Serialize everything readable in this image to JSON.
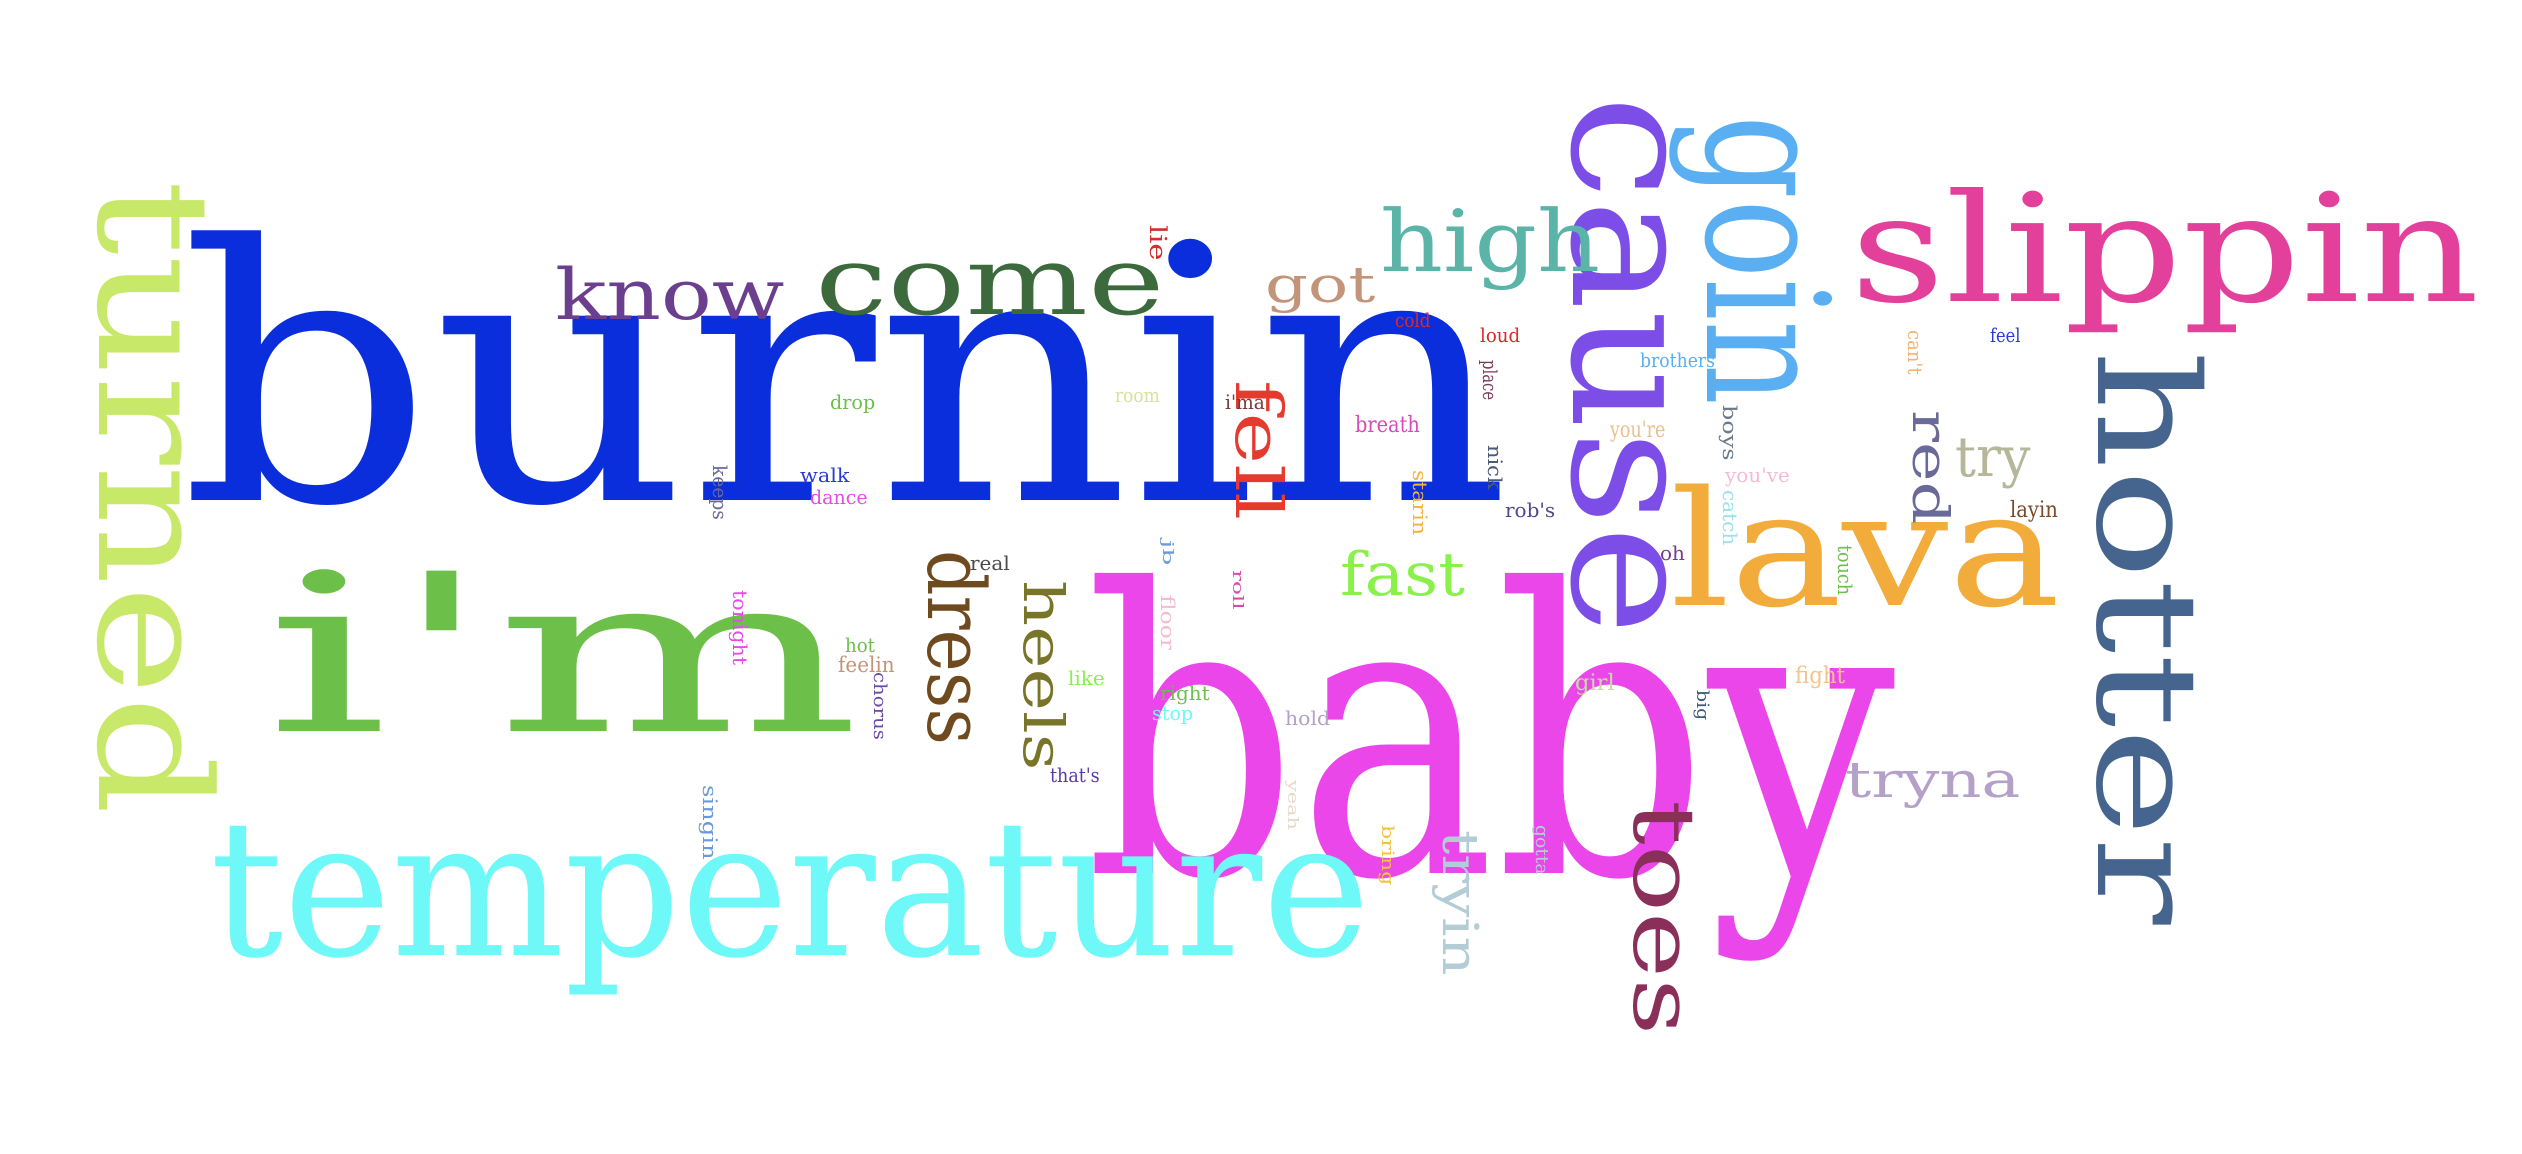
{
  "words": [
    {
      "text": "burnin",
      "color": "#0a2edb",
      "rotation": "horizontal"
    },
    {
      "text": "i'm",
      "color": "#6cc04a",
      "rotation": "horizontal"
    },
    {
      "text": "baby",
      "color": "#ea46ea",
      "rotation": "horizontal"
    },
    {
      "text": "temperature",
      "color": "#6ff8f8",
      "rotation": "horizontal"
    },
    {
      "text": "turned",
      "color": "#c8e86a",
      "rotation": "rotated"
    },
    {
      "text": "cause",
      "color": "#7d4de8",
      "rotation": "rotated"
    },
    {
      "text": "goin",
      "color": "#5aaef2",
      "rotation": "rotated"
    },
    {
      "text": "slippin",
      "color": "#e2409a",
      "rotation": "horizontal"
    },
    {
      "text": "hotter",
      "color": "#46658e",
      "rotation": "rotated"
    },
    {
      "text": "lava",
      "color": "#f2ac3c",
      "rotation": "horizontal"
    },
    {
      "text": "come",
      "color": "#3d6a3d",
      "rotation": "horizontal"
    },
    {
      "text": "know",
      "color": "#6b3f8e",
      "rotation": "horizontal"
    },
    {
      "text": "high",
      "color": "#5ab4a8",
      "rotation": "horizontal"
    },
    {
      "text": "got",
      "color": "#c29479",
      "rotation": "horizontal"
    },
    {
      "text": "fell",
      "color": "#e53a2e",
      "rotation": "rotated"
    },
    {
      "text": "fast",
      "color": "#8af04a",
      "rotation": "horizontal"
    },
    {
      "text": "dress",
      "color": "#6e4a1e",
      "rotation": "rotated"
    },
    {
      "text": "heels",
      "color": "#787428",
      "rotation": "rotated"
    },
    {
      "text": "toes",
      "color": "#8a2e5a",
      "rotation": "rotated"
    },
    {
      "text": "tryna",
      "color": "#b4a0c8",
      "rotation": "horizontal"
    },
    {
      "text": "tryin",
      "color": "#b4ccd6",
      "rotation": "rotated"
    },
    {
      "text": "try",
      "color": "#b6b69a",
      "rotation": "horizontal"
    },
    {
      "text": "red",
      "color": "#6a6a9a",
      "rotation": "rotated"
    },
    {
      "text": "lie",
      "color": "#d0302a",
      "rotation": "rotated"
    },
    {
      "text": "cold",
      "color": "#d82a2a",
      "rotation": "horizontal"
    },
    {
      "text": "loud",
      "color": "#d82a2a",
      "rotation": "horizontal"
    },
    {
      "text": "place",
      "color": "#7a3a5a",
      "rotation": "rotated"
    },
    {
      "text": "brothers",
      "color": "#5aaef2",
      "rotation": "horizontal"
    },
    {
      "text": "feel",
      "color": "#2a3ad8",
      "rotation": "horizontal"
    },
    {
      "text": "can't",
      "color": "#f2b470",
      "rotation": "rotated"
    },
    {
      "text": "drop",
      "color": "#6cc04a",
      "rotation": "horizontal"
    },
    {
      "text": "room",
      "color": "#d4e49a",
      "rotation": "horizontal"
    },
    {
      "text": "i'ma",
      "color": "#7a3a3a",
      "rotation": "horizontal"
    },
    {
      "text": "breath",
      "color": "#d84ab4",
      "rotation": "horizontal"
    },
    {
      "text": "you're",
      "color": "#e8c090",
      "rotation": "horizontal"
    },
    {
      "text": "boys",
      "color": "#6a7a8a",
      "rotation": "rotated"
    },
    {
      "text": "you've",
      "color": "#f4bcd4",
      "rotation": "horizontal"
    },
    {
      "text": "nick",
      "color": "#4a5a7a",
      "rotation": "rotated"
    },
    {
      "text": "starin",
      "color": "#f2b43c",
      "rotation": "rotated"
    },
    {
      "text": "catch",
      "color": "#9ae0f0",
      "rotation": "rotated"
    },
    {
      "text": "rob's",
      "color": "#4a4a8a",
      "rotation": "horizontal"
    },
    {
      "text": "layin",
      "color": "#7a4a2a",
      "rotation": "horizontal"
    },
    {
      "text": "keeps",
      "color": "#6a6a9a",
      "rotation": "rotated"
    },
    {
      "text": "walk",
      "color": "#2a3ad8",
      "rotation": "horizontal"
    },
    {
      "text": "dance",
      "color": "#e84ae8",
      "rotation": "horizontal"
    },
    {
      "text": "oh",
      "color": "#7a3a8a",
      "rotation": "horizontal"
    },
    {
      "text": "touch",
      "color": "#6cc04a",
      "rotation": "rotated"
    },
    {
      "text": "real",
      "color": "#4a4a4a",
      "rotation": "horizontal"
    },
    {
      "text": "jb",
      "color": "#6a9ad8",
      "rotation": "rotated"
    },
    {
      "text": "roll",
      "color": "#d84ab4",
      "rotation": "rotated"
    },
    {
      "text": "floor",
      "color": "#f4bcd4",
      "rotation": "rotated"
    },
    {
      "text": "tonight",
      "color": "#e84ae8",
      "rotation": "rotated"
    },
    {
      "text": "hot",
      "color": "#6cc04a",
      "rotation": "horizontal"
    },
    {
      "text": "feelin",
      "color": "#c29479",
      "rotation": "horizontal"
    },
    {
      "text": "chorus",
      "color": "#6a4aa8",
      "rotation": "rotated"
    },
    {
      "text": "like",
      "color": "#8af04a",
      "rotation": "horizontal"
    },
    {
      "text": "right",
      "color": "#6cc04a",
      "rotation": "horizontal"
    },
    {
      "text": "stop",
      "color": "#6ff8f8",
      "rotation": "horizontal"
    },
    {
      "text": "hold",
      "color": "#b4a0c8",
      "rotation": "horizontal"
    },
    {
      "text": "fight",
      "color": "#f4c48a",
      "rotation": "horizontal"
    },
    {
      "text": "girl",
      "color": "#c8d8a8",
      "rotation": "horizontal"
    },
    {
      "text": "big",
      "color": "#3a5a7a",
      "rotation": "rotated"
    },
    {
      "text": "that's",
      "color": "#5a3aa8",
      "rotation": "horizontal"
    },
    {
      "text": "singin",
      "color": "#6a9ad8",
      "rotation": "rotated"
    },
    {
      "text": "yeah",
      "color": "#e8d8c8",
      "rotation": "rotated"
    },
    {
      "text": "bring",
      "color": "#f2c43c",
      "rotation": "rotated"
    },
    {
      "text": "gotta",
      "color": "#b4ccd6",
      "rotation": "rotated"
    }
  ]
}
